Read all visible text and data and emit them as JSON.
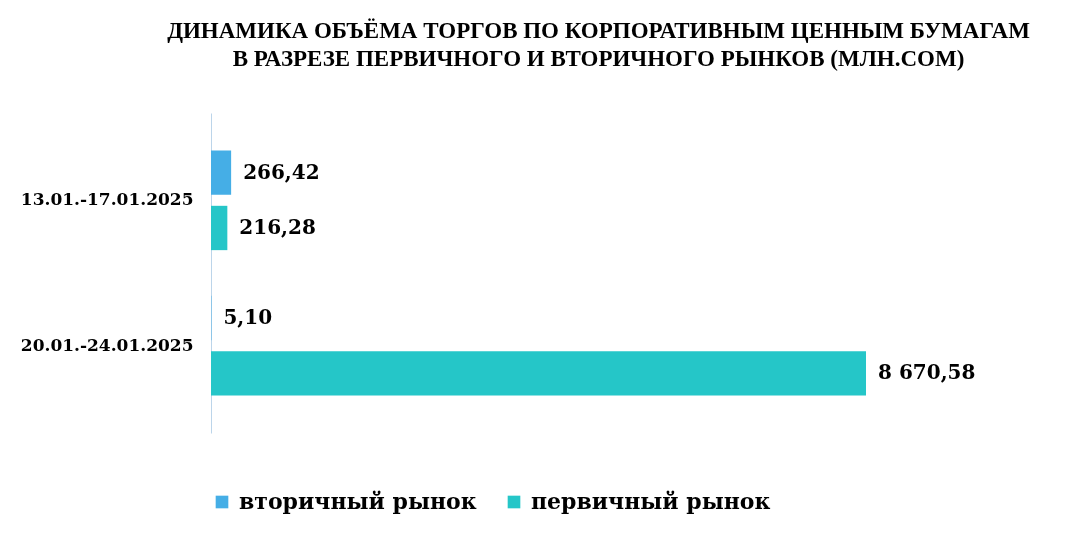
{
  "chart_data": {
    "type": "bar",
    "orientation": "horizontal",
    "title": "ДИНАМИКА ОБЪЁМА ТОРГОВ ПО КОРПОРАТИВНЫМ ЦЕННЫМ БУМАГАМ\nВ РАЗРЕЗЕ ПЕРВИЧНОГО И ВТОРИЧНОГО РЫНКОВ (МЛН.СОМ)",
    "categories": [
      "13.01.-17.01.2025",
      "20.01.-24.01.2025"
    ],
    "series": [
      {
        "name": "вторичный рынок",
        "color": "#45aee6",
        "values": [
          266.42,
          5.1
        ],
        "value_labels": [
          "266,42",
          "5,10"
        ]
      },
      {
        "name": "первичный рынок",
        "color": "#25c6c8",
        "values": [
          216.28,
          8670.58
        ],
        "value_labels": [
          "216,28",
          "8 670,58"
        ]
      }
    ],
    "legend": "bottom"
  }
}
